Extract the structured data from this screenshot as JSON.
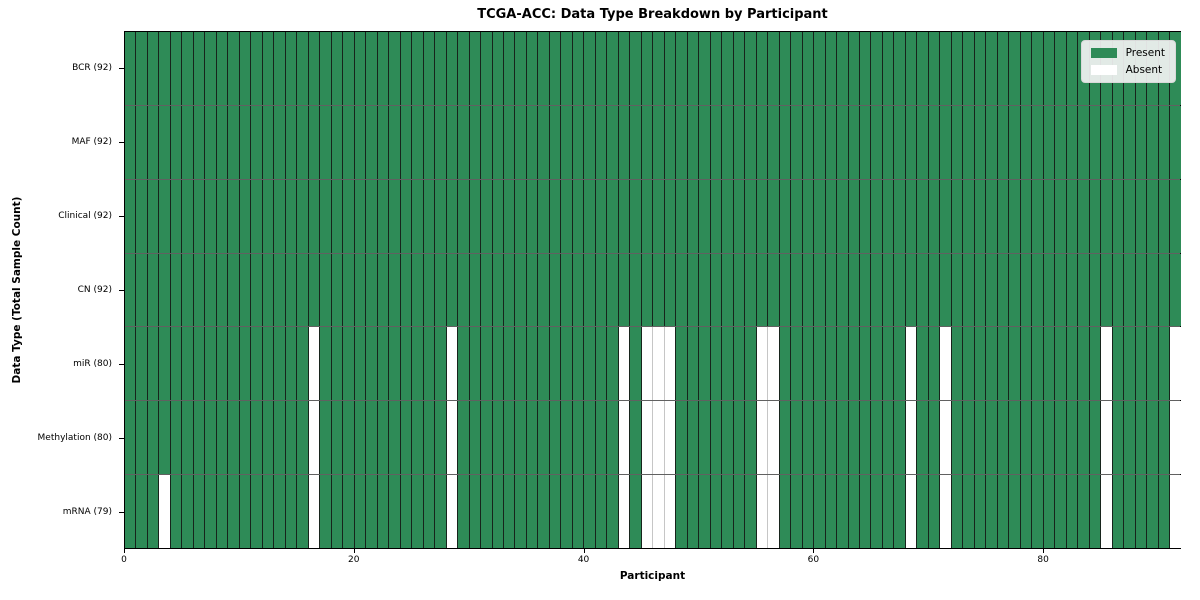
{
  "chart_data": {
    "type": "heatmap",
    "title": "TCGA-ACC: Data Type Breakdown by Participant",
    "xlabel": "Participant",
    "ylabel": "Data Type (Total Sample Count)",
    "n_participants": 92,
    "xlim": [
      0,
      92
    ],
    "x_ticks": [
      0,
      20,
      40,
      60,
      80
    ],
    "grid": "cell-borders",
    "legend_position": "upper right",
    "legend": [
      {
        "label": "Present",
        "color": "#2e8b57"
      },
      {
        "label": "Absent",
        "color": "#ffffff"
      }
    ],
    "colors": {
      "present": "#2e8b57",
      "absent": "#ffffff",
      "cell_edge_present": "#17241c",
      "cell_edge_absent": "#c6c6c6",
      "spine": "#000000",
      "legend_bg": "#f2f2f2",
      "legend_border": "#d9d9d9"
    },
    "rows": [
      {
        "label": "BCR (92)",
        "data_type": "BCR",
        "present_count": 92,
        "absent_participants": []
      },
      {
        "label": "MAF (92)",
        "data_type": "MAF",
        "present_count": 92,
        "absent_participants": []
      },
      {
        "label": "Clinical (92)",
        "data_type": "Clinical",
        "present_count": 92,
        "absent_participants": []
      },
      {
        "label": "CN (92)",
        "data_type": "CN",
        "present_count": 92,
        "absent_participants": []
      },
      {
        "label": "miR (80)",
        "data_type": "miR",
        "present_count": 80,
        "absent_participants": [
          16,
          28,
          43,
          45,
          46,
          47,
          55,
          56,
          68,
          71,
          85,
          91
        ]
      },
      {
        "label": "Methylation (80)",
        "data_type": "Methylation",
        "present_count": 80,
        "absent_participants": [
          16,
          28,
          43,
          45,
          46,
          47,
          55,
          56,
          68,
          71,
          85,
          91
        ]
      },
      {
        "label": "mRNA (79)",
        "data_type": "mRNA",
        "present_count": 79,
        "absent_participants": [
          3,
          16,
          28,
          43,
          45,
          46,
          47,
          55,
          56,
          68,
          71,
          85,
          91
        ]
      }
    ]
  }
}
